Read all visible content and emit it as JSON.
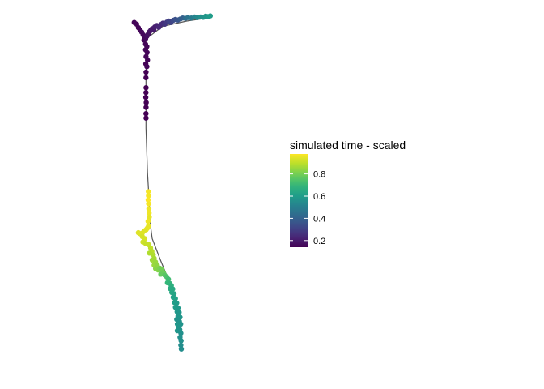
{
  "chart_data": {
    "type": "scatter",
    "title": "",
    "xlabel": "",
    "ylabel": "",
    "axes_visible": false,
    "grid": false,
    "legend": {
      "title": "simulated time - scaled",
      "placement": "right",
      "colormap": "viridis",
      "range": [
        0.14,
        0.98
      ],
      "ticks": [
        0.2,
        0.4,
        0.6,
        0.8
      ],
      "tick_labels": [
        "0.2",
        "0.4",
        "0.6",
        "0.8"
      ]
    },
    "x_range": [
      0,
      100
    ],
    "y_range": [
      0,
      100
    ],
    "edges": [
      [
        [
          10,
          95
        ],
        [
          22,
          98.5
        ],
        [
          40,
          100
        ],
        [
          58,
          101
        ]
      ],
      [
        [
          10,
          95
        ],
        [
          0.5,
          99.5
        ]
      ],
      [
        [
          10,
          95
        ],
        [
          9.5,
          89
        ],
        [
          9.3,
          83
        ]
      ],
      [
        [
          9.3,
          83
        ],
        [
          9.3,
          69
        ],
        [
          10.5,
          56
        ],
        [
          12,
          46
        ]
      ],
      [
        [
          12,
          46
        ],
        [
          12.5,
          41.5
        ],
        [
          14,
          37
        ],
        [
          20,
          31
        ],
        [
          28.5,
          23
        ],
        [
          33,
          17
        ],
        [
          35,
          12
        ],
        [
          36,
          6
        ]
      ],
      [
        [
          33,
          17
        ],
        [
          33.5,
          10.5
        ]
      ]
    ],
    "points": [
      {
        "x": 0.5,
        "y": 99.6,
        "t": 0.15
      },
      {
        "x": 2.3,
        "y": 99.1,
        "t": 0.15
      },
      {
        "x": 3.6,
        "y": 98.1,
        "t": 0.15
      },
      {
        "x": 4.9,
        "y": 97.4,
        "t": 0.15
      },
      {
        "x": 6.1,
        "y": 96.8,
        "t": 0.16
      },
      {
        "x": 7.2,
        "y": 96.0,
        "t": 0.16
      },
      {
        "x": 8.3,
        "y": 95.5,
        "t": 0.16
      },
      {
        "x": 7.8,
        "y": 94.5,
        "t": 0.15
      },
      {
        "x": 9.1,
        "y": 94.9,
        "t": 0.16
      },
      {
        "x": 10.0,
        "y": 95.6,
        "t": 0.17
      },
      {
        "x": 11.0,
        "y": 96.2,
        "t": 0.18
      },
      {
        "x": 12.0,
        "y": 96.9,
        "t": 0.18
      },
      {
        "x": 13.0,
        "y": 97.4,
        "t": 0.19
      },
      {
        "x": 14.0,
        "y": 97.8,
        "t": 0.2
      },
      {
        "x": 15.3,
        "y": 97.4,
        "t": 0.2
      },
      {
        "x": 16.0,
        "y": 98.3,
        "t": 0.21
      },
      {
        "x": 17.5,
        "y": 98.7,
        "t": 0.22
      },
      {
        "x": 19.0,
        "y": 98.2,
        "t": 0.23
      },
      {
        "x": 20.4,
        "y": 99.0,
        "t": 0.24
      },
      {
        "x": 22.0,
        "y": 99.4,
        "t": 0.25
      },
      {
        "x": 23.5,
        "y": 99.1,
        "t": 0.27
      },
      {
        "x": 25.0,
        "y": 99.7,
        "t": 0.28
      },
      {
        "x": 26.6,
        "y": 100.0,
        "t": 0.3
      },
      {
        "x": 28.2,
        "y": 99.6,
        "t": 0.31
      },
      {
        "x": 29.8,
        "y": 100.2,
        "t": 0.33
      },
      {
        "x": 31.5,
        "y": 100.5,
        "t": 0.35
      },
      {
        "x": 33.3,
        "y": 100.3,
        "t": 0.36
      },
      {
        "x": 35.2,
        "y": 100.6,
        "t": 0.38
      },
      {
        "x": 37.0,
        "y": 100.9,
        "t": 0.4
      },
      {
        "x": 39.0,
        "y": 100.8,
        "t": 0.43
      },
      {
        "x": 41.0,
        "y": 101.0,
        "t": 0.46
      },
      {
        "x": 43.5,
        "y": 100.9,
        "t": 0.49
      },
      {
        "x": 46.0,
        "y": 101.2,
        "t": 0.52
      },
      {
        "x": 48.0,
        "y": 101.0,
        "t": 0.54
      },
      {
        "x": 50.5,
        "y": 101.2,
        "t": 0.56
      },
      {
        "x": 52.5,
        "y": 101.1,
        "t": 0.57
      },
      {
        "x": 54.3,
        "y": 101.4,
        "t": 0.58
      },
      {
        "x": 56.0,
        "y": 101.3,
        "t": 0.59
      },
      {
        "x": 57.8,
        "y": 101.5,
        "t": 0.6
      },
      {
        "x": 9.0,
        "y": 93.3,
        "t": 0.15
      },
      {
        "x": 10.0,
        "y": 92.6,
        "t": 0.15
      },
      {
        "x": 9.0,
        "y": 91.7,
        "t": 0.15
      },
      {
        "x": 10.2,
        "y": 90.9,
        "t": 0.15
      },
      {
        "x": 9.4,
        "y": 89.7,
        "t": 0.15
      },
      {
        "x": 10.5,
        "y": 88.7,
        "t": 0.15
      },
      {
        "x": 9.2,
        "y": 87.6,
        "t": 0.14
      },
      {
        "x": 10.0,
        "y": 86.8,
        "t": 0.15
      },
      {
        "x": 9.4,
        "y": 85.2,
        "t": 0.14
      },
      {
        "x": 9.3,
        "y": 83.6,
        "t": 0.14
      },
      {
        "x": 9.4,
        "y": 80.7,
        "t": 0.14
      },
      {
        "x": 9.3,
        "y": 79.3,
        "t": 0.14
      },
      {
        "x": 9.2,
        "y": 77.9,
        "t": 0.14
      },
      {
        "x": 9.5,
        "y": 76.4,
        "t": 0.14
      },
      {
        "x": 9.4,
        "y": 75.0,
        "t": 0.14
      },
      {
        "x": 9.3,
        "y": 73.2,
        "t": 0.14
      },
      {
        "x": 9.4,
        "y": 71.9,
        "t": 0.14
      },
      {
        "x": 11.1,
        "y": 50.6,
        "t": 0.97
      },
      {
        "x": 11.2,
        "y": 49.4,
        "t": 0.97
      },
      {
        "x": 11.0,
        "y": 48.2,
        "t": 0.98
      },
      {
        "x": 11.3,
        "y": 47.1,
        "t": 0.97
      },
      {
        "x": 11.5,
        "y": 45.6,
        "t": 0.96
      },
      {
        "x": 11.7,
        "y": 44.4,
        "t": 0.96
      },
      {
        "x": 11.8,
        "y": 43.2,
        "t": 0.95
      },
      {
        "x": 10.9,
        "y": 42.0,
        "t": 0.96
      },
      {
        "x": 11.2,
        "y": 40.6,
        "t": 0.95
      },
      {
        "x": 10.3,
        "y": 40.0,
        "t": 0.95
      },
      {
        "x": 9.5,
        "y": 39.6,
        "t": 0.95
      },
      {
        "x": 8.0,
        "y": 39.2,
        "t": 0.94
      },
      {
        "x": 6.5,
        "y": 38.6,
        "t": 0.94
      },
      {
        "x": 5.0,
        "y": 38.4,
        "t": 0.94
      },
      {
        "x": 3.6,
        "y": 38.7,
        "t": 0.94
      },
      {
        "x": 6.5,
        "y": 37.6,
        "t": 0.93
      },
      {
        "x": 8.5,
        "y": 37.0,
        "t": 0.93
      },
      {
        "x": 7.0,
        "y": 36.0,
        "t": 0.92
      },
      {
        "x": 9.0,
        "y": 35.6,
        "t": 0.91
      },
      {
        "x": 11.5,
        "y": 35.2,
        "t": 0.91
      },
      {
        "x": 12.8,
        "y": 34.3,
        "t": 0.9
      },
      {
        "x": 13.8,
        "y": 33.3,
        "t": 0.89
      },
      {
        "x": 12.0,
        "y": 32.8,
        "t": 0.88
      },
      {
        "x": 14.8,
        "y": 32.3,
        "t": 0.88
      },
      {
        "x": 15.5,
        "y": 31.3,
        "t": 0.87
      },
      {
        "x": 14.0,
        "y": 30.8,
        "t": 0.86
      },
      {
        "x": 16.5,
        "y": 30.2,
        "t": 0.85
      },
      {
        "x": 15.5,
        "y": 29.3,
        "t": 0.85
      },
      {
        "x": 17.8,
        "y": 29.3,
        "t": 0.84
      },
      {
        "x": 16.5,
        "y": 28.3,
        "t": 0.83
      },
      {
        "x": 18.5,
        "y": 27.9,
        "t": 0.82
      },
      {
        "x": 19.8,
        "y": 28.4,
        "t": 0.81
      },
      {
        "x": 21.3,
        "y": 28.0,
        "t": 0.8
      },
      {
        "x": 22.5,
        "y": 27.2,
        "t": 0.79
      },
      {
        "x": 20.5,
        "y": 26.7,
        "t": 0.78
      },
      {
        "x": 23.5,
        "y": 26.4,
        "t": 0.76
      },
      {
        "x": 25.0,
        "y": 25.9,
        "t": 0.74
      },
      {
        "x": 26.3,
        "y": 25.2,
        "t": 0.72
      },
      {
        "x": 25.5,
        "y": 24.2,
        "t": 0.7
      },
      {
        "x": 27.3,
        "y": 24.0,
        "t": 0.69
      },
      {
        "x": 28.5,
        "y": 23.4,
        "t": 0.67
      },
      {
        "x": 27.5,
        "y": 22.5,
        "t": 0.66
      },
      {
        "x": 29.5,
        "y": 22.4,
        "t": 0.65
      },
      {
        "x": 28.8,
        "y": 21.4,
        "t": 0.64
      },
      {
        "x": 30.5,
        "y": 21.0,
        "t": 0.63
      },
      {
        "x": 29.8,
        "y": 20.0,
        "t": 0.62
      },
      {
        "x": 31.5,
        "y": 19.6,
        "t": 0.62
      },
      {
        "x": 30.8,
        "y": 18.5,
        "t": 0.61
      },
      {
        "x": 32.5,
        "y": 18.3,
        "t": 0.6
      },
      {
        "x": 31.5,
        "y": 17.1,
        "t": 0.6
      },
      {
        "x": 33.5,
        "y": 16.9,
        "t": 0.59
      },
      {
        "x": 32.8,
        "y": 15.8,
        "t": 0.59
      },
      {
        "x": 34.3,
        "y": 15.6,
        "t": 0.58
      },
      {
        "x": 33.5,
        "y": 14.5,
        "t": 0.58
      },
      {
        "x": 35.0,
        "y": 14.2,
        "t": 0.58
      },
      {
        "x": 32.5,
        "y": 13.6,
        "t": 0.57
      },
      {
        "x": 34.5,
        "y": 13.0,
        "t": 0.57
      },
      {
        "x": 35.5,
        "y": 12.2,
        "t": 0.57
      },
      {
        "x": 33.0,
        "y": 12.2,
        "t": 0.58
      },
      {
        "x": 33.6,
        "y": 11.4,
        "t": 0.58
      },
      {
        "x": 32.9,
        "y": 10.3,
        "t": 0.58
      },
      {
        "x": 34.8,
        "y": 10.6,
        "t": 0.57
      },
      {
        "x": 35.6,
        "y": 9.6,
        "t": 0.56
      },
      {
        "x": 35.0,
        "y": 8.4,
        "t": 0.56
      },
      {
        "x": 35.8,
        "y": 7.4,
        "t": 0.56
      },
      {
        "x": 35.6,
        "y": 6.1,
        "t": 0.55
      },
      {
        "x": 36.0,
        "y": 5.0,
        "t": 0.55
      }
    ]
  }
}
